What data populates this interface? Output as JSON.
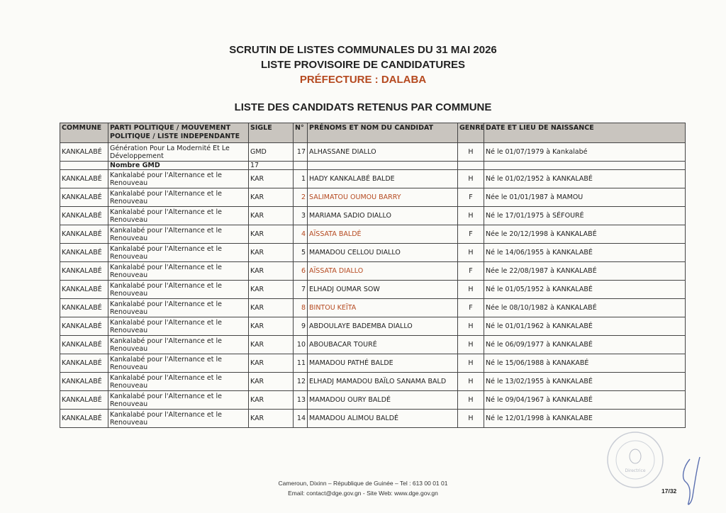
{
  "header": {
    "line1": "SCRUTIN DE LISTES COMMUNALES DU 31 MAI 2026",
    "line2": "LISTE PROVISOIRE DE CANDIDATURES",
    "line3": "PRÉFECTURE : DALABA",
    "line4": "LISTE DES CANDIDATS RETENUS PAR COMMUNE"
  },
  "colors": {
    "accent": "#b5491f",
    "header_bg": "#c9c5bf"
  },
  "table": {
    "columns": [
      "COMMUNE",
      "PARTI POLITIQUE / MOUVEMENT POLITIQUE / LISTE INDEPENDANTE",
      "SIGLE",
      "N°",
      "PRÉNOMS ET NOM DU CANDIDAT",
      "GENRE",
      "DATE ET LIEU DE NAISSANCE"
    ],
    "row_gmd": {
      "commune": "KANKALABÉ",
      "parti": "Génération Pour La Modernité Et Le Développement",
      "sigle": "GMD",
      "num": "17",
      "nom": "ALHASSANE DIALLO",
      "genre": "H",
      "naissance": "Né le 01/07/1979 à Kankalabé"
    },
    "subtotal": {
      "label": "Nombre GMD",
      "value": "17"
    },
    "rows": [
      {
        "commune": "KANKALABÉ",
        "parti": "Kankalabé pour l'Alternance et le Renouveau",
        "sigle": "KAR",
        "num": "1",
        "nom": "HADY KANKALABÉ BALDE",
        "genre": "H",
        "naissance": "Né le 01/02/1952 à KANKALABÉ"
      },
      {
        "commune": "KANKALABÉ",
        "parti": "Kankalabé pour l'Alternance et le Renouveau",
        "sigle": "KAR",
        "num": "2",
        "nom": "SALIMATOU OUMOU BARRY",
        "genre": "F",
        "naissance": "Née le 01/01/1987 à MAMOU"
      },
      {
        "commune": "KANKALABÉ",
        "parti": "Kankalabé pour l'Alternance et le Renouveau",
        "sigle": "KAR",
        "num": "3",
        "nom": "MARIAMA SADIO DIALLO",
        "genre": "H",
        "naissance": "Né le 17/01/1975 à SÉFOURÉ"
      },
      {
        "commune": "KANKALABÉ",
        "parti": "Kankalabé pour l'Alternance et le Renouveau",
        "sigle": "KAR",
        "num": "4",
        "nom": "AÏSSATA BALDÉ",
        "genre": "F",
        "naissance": "Née le 20/12/1998 à KANKALABÉ"
      },
      {
        "commune": "KANKALABÉ",
        "parti": "Kankalabé pour l'Alternance et le Renouveau",
        "sigle": "KAR",
        "num": "5",
        "nom": "MAMADOU CELLOU DIALLO",
        "genre": "H",
        "naissance": "Né le 14/06/1955 à KANKALABÉ"
      },
      {
        "commune": "KANKALABÉ",
        "parti": "Kankalabé pour l'Alternance et le Renouveau",
        "sigle": "KAR",
        "num": "6",
        "nom": "AÏSSATA DIALLO",
        "genre": "F",
        "naissance": "Née le 22/08/1987 à KANKALABÉ"
      },
      {
        "commune": "KANKALABÉ",
        "parti": "Kankalabé pour l'Alternance et le Renouveau",
        "sigle": "KAR",
        "num": "7",
        "nom": "ELHADJ OUMAR SOW",
        "genre": "H",
        "naissance": "Né le 01/05/1952 à KANKALABÉ"
      },
      {
        "commune": "KANKALABÉ",
        "parti": "Kankalabé pour l'Alternance et le Renouveau",
        "sigle": "KAR",
        "num": "8",
        "nom": "BINTOU KEÏTA",
        "genre": "F",
        "naissance": "Née le 08/10/1982 à KANKALABÉ"
      },
      {
        "commune": "KANKALABÉ",
        "parti": "Kankalabé pour l'Alternance et le Renouveau",
        "sigle": "KAR",
        "num": "9",
        "nom": "ABDOULAYE BADEMBA DIALLO",
        "genre": "H",
        "naissance": "Né le 01/01/1962 à KANKALABÉ"
      },
      {
        "commune": "KANKALABÉ",
        "parti": "Kankalabé pour l'Alternance et le Renouveau",
        "sigle": "KAR",
        "num": "10",
        "nom": "ABOUBACAR TOURÉ",
        "genre": "H",
        "naissance": "Né le 06/09/1977 à KANKALABÉ"
      },
      {
        "commune": "KANKALABÉ",
        "parti": "Kankalabé pour l'Alternance et le Renouveau",
        "sigle": "KAR",
        "num": "11",
        "nom": "MAMADOU PATHÉ BALDE",
        "genre": "H",
        "naissance": "Né le 15/06/1988 à KANAKABÉ"
      },
      {
        "commune": "KANKALABÉ",
        "parti": "Kankalabé pour l'Alternance et le Renouveau",
        "sigle": "KAR",
        "num": "12",
        "nom": "ELHADJ MAMADOU BAÏLO SANAMA BALD",
        "genre": "H",
        "naissance": "Né le 13/02/1955 à KANKALABÉ"
      },
      {
        "commune": "KANKALABÉ",
        "parti": "Kankalabé pour l'Alternance et le Renouveau",
        "sigle": "KAR",
        "num": "13",
        "nom": "MAMADOU OURY BALDÉ",
        "genre": "H",
        "naissance": "Né le 09/04/1967 à KANKALABÉ"
      },
      {
        "commune": "KANKALABÉ",
        "parti": "Kankalabé pour l'Alternance et le Renouveau",
        "sigle": "KAR",
        "num": "14",
        "nom": "MAMADOU ALIMOU BALDÉ",
        "genre": "H",
        "naissance": "Né le 12/01/1998 à KANKALABE"
      }
    ]
  },
  "footer": {
    "line1": "Cameroun, Dixinn – République de Guinée – Tel : 613 00 01 01",
    "line2": "Email: contact@dge.gov.gn  - Site Web: www.dge.gov.gn",
    "page": "17/32"
  },
  "seal": {
    "text": "DIRECTION GENERALE DES ELECTIONS",
    "icon": "official-seal"
  }
}
